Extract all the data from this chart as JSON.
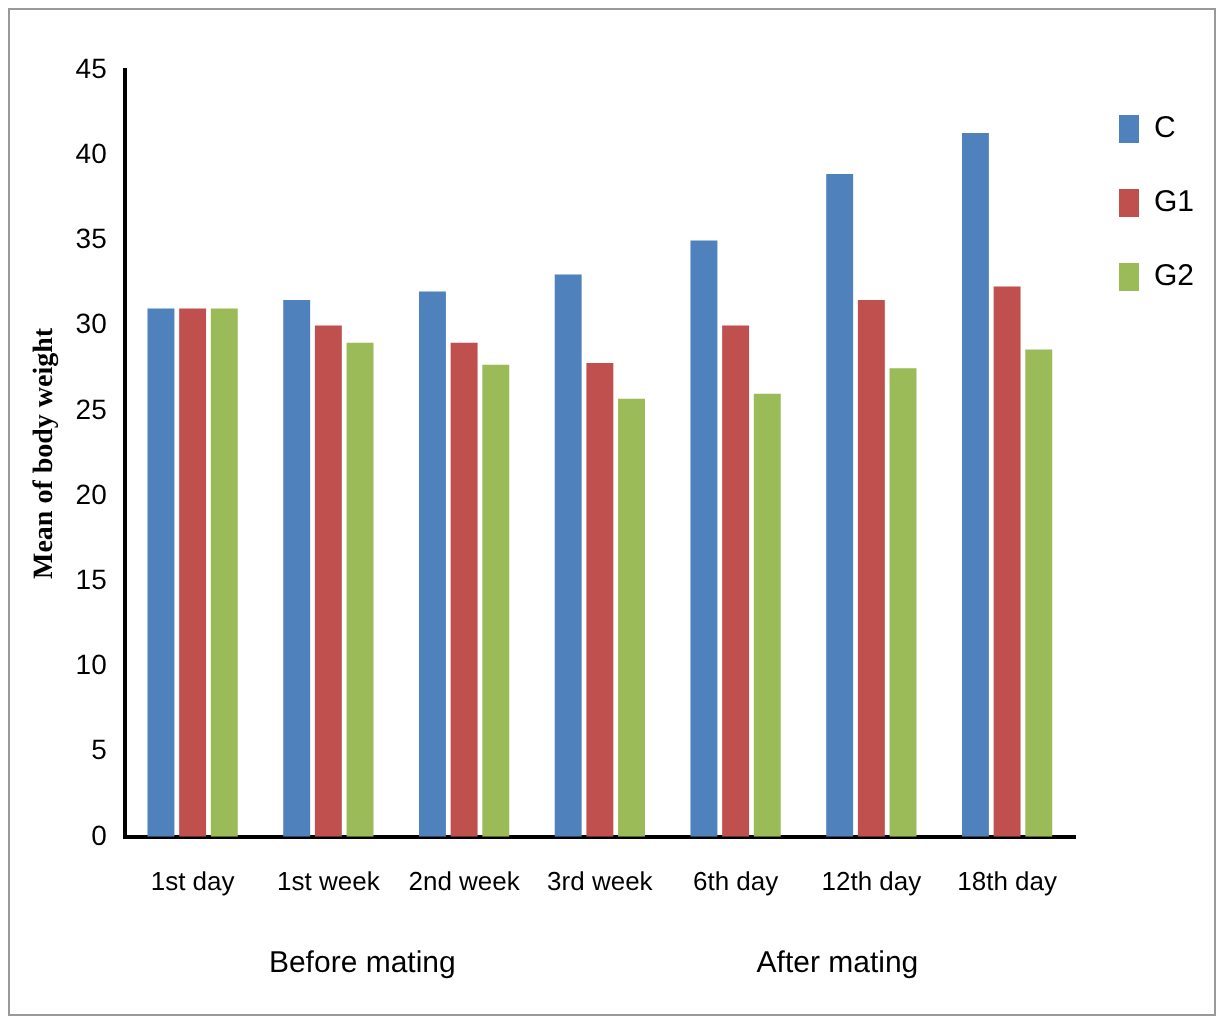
{
  "chart_data": {
    "type": "bar",
    "ylabel": "Mean of body weight",
    "categories": [
      "1st day",
      "1st week",
      "2nd week",
      "3rd week",
      "6th day",
      "12th day",
      "18th day"
    ],
    "series": [
      {
        "name": "C",
        "color": "#4f81bd",
        "values": [
          31,
          31.5,
          32,
          33,
          35,
          38.9,
          41.3
        ]
      },
      {
        "name": "G1",
        "color": "#c0504d",
        "values": [
          31,
          30,
          29,
          27.8,
          30,
          31.5,
          32.3
        ]
      },
      {
        "name": "G2",
        "color": "#9bbb59",
        "values": [
          31,
          29,
          27.7,
          25.7,
          26,
          27.5,
          28.6
        ]
      }
    ],
    "ylim": [
      0,
      45
    ],
    "yticks": [
      0,
      5,
      10,
      15,
      20,
      25,
      30,
      35,
      40,
      45
    ],
    "annotations": [
      "Before mating",
      "After mating"
    ],
    "grid": false,
    "legend": "top right"
  }
}
